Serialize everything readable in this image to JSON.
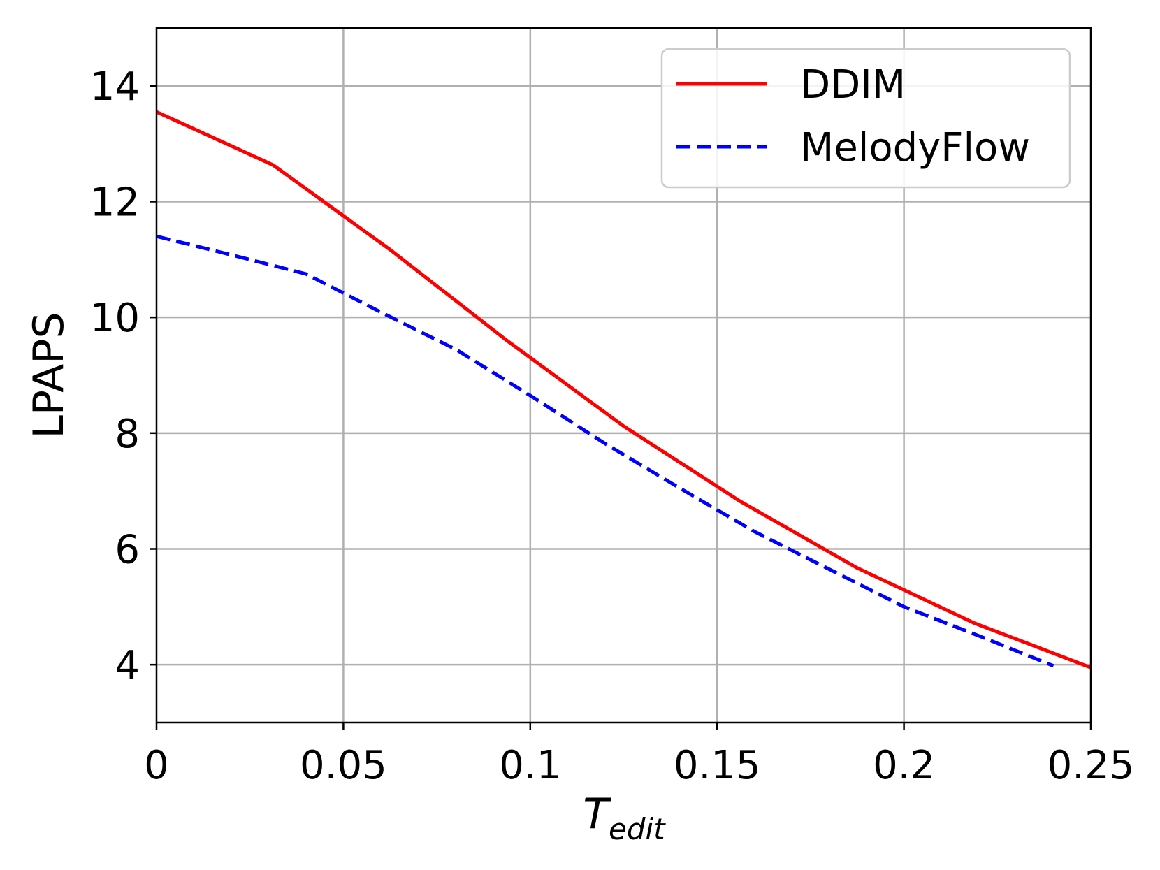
{
  "chart_data": {
    "type": "line",
    "title": "",
    "xlabel": "T",
    "xlabel_subscript": "edit",
    "ylabel": "LPAPS",
    "xlim": [
      0,
      0.25
    ],
    "ylim": [
      3,
      15
    ],
    "xticks": [
      {
        "value": 0,
        "label": "0"
      },
      {
        "value": 0.05,
        "label": "0.05"
      },
      {
        "value": 0.1,
        "label": "0.1"
      },
      {
        "value": 0.15,
        "label": "0.15"
      },
      {
        "value": 0.2,
        "label": "0.2"
      },
      {
        "value": 0.25,
        "label": "0.25"
      }
    ],
    "yticks": [
      {
        "value": 4,
        "label": "4"
      },
      {
        "value": 6,
        "label": "6"
      },
      {
        "value": 8,
        "label": "8"
      },
      {
        "value": 10,
        "label": "10"
      },
      {
        "value": 12,
        "label": "12"
      },
      {
        "value": 14,
        "label": "14"
      }
    ],
    "grid": true,
    "legend_position": "top-right",
    "series": [
      {
        "name": "DDIM",
        "color": "#ff0000",
        "dash": "solid",
        "x": [
          0,
          0.03125,
          0.0625,
          0.09375,
          0.125,
          0.15625,
          0.1875,
          0.21875,
          0.25
        ],
        "y": [
          13.55,
          12.63,
          11.17,
          9.6,
          8.12,
          6.82,
          5.67,
          4.72,
          3.95
        ]
      },
      {
        "name": "MelodyFlow",
        "color": "#0000ff",
        "dash": "dashed",
        "x": [
          0,
          0.02,
          0.04,
          0.06,
          0.08,
          0.1,
          0.12,
          0.14,
          0.16,
          0.18,
          0.2,
          0.22,
          0.24
        ],
        "y": [
          11.4,
          11.08,
          10.75,
          10.09,
          9.45,
          8.65,
          7.82,
          7.05,
          6.3,
          5.65,
          5.0,
          4.5,
          3.98
        ]
      }
    ]
  }
}
